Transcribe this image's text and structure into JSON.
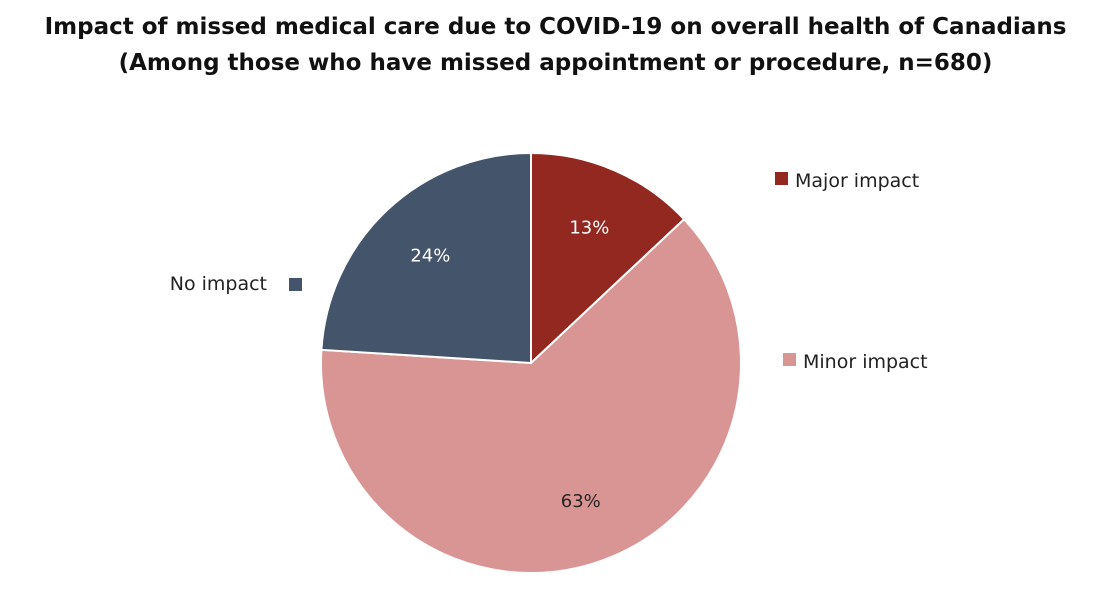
{
  "chart_data": {
    "type": "pie",
    "title": "Impact of missed medical care due to COVID-19 on overall health of Canadians",
    "subtitle": "(Among those who have missed appointment or procedure, n=680)",
    "categories": [
      "Major impact",
      "Minor impact",
      "No impact"
    ],
    "values": [
      13,
      63,
      24
    ],
    "value_labels": [
      "13%",
      "63%",
      "24%"
    ],
    "colors": [
      "#922820",
      "#d99594",
      "#44546a"
    ],
    "label_colors": [
      "#ffffff",
      "#262626",
      "#ffffff"
    ],
    "start_angle_deg": 0,
    "direction": "clockwise",
    "legend": "right"
  }
}
